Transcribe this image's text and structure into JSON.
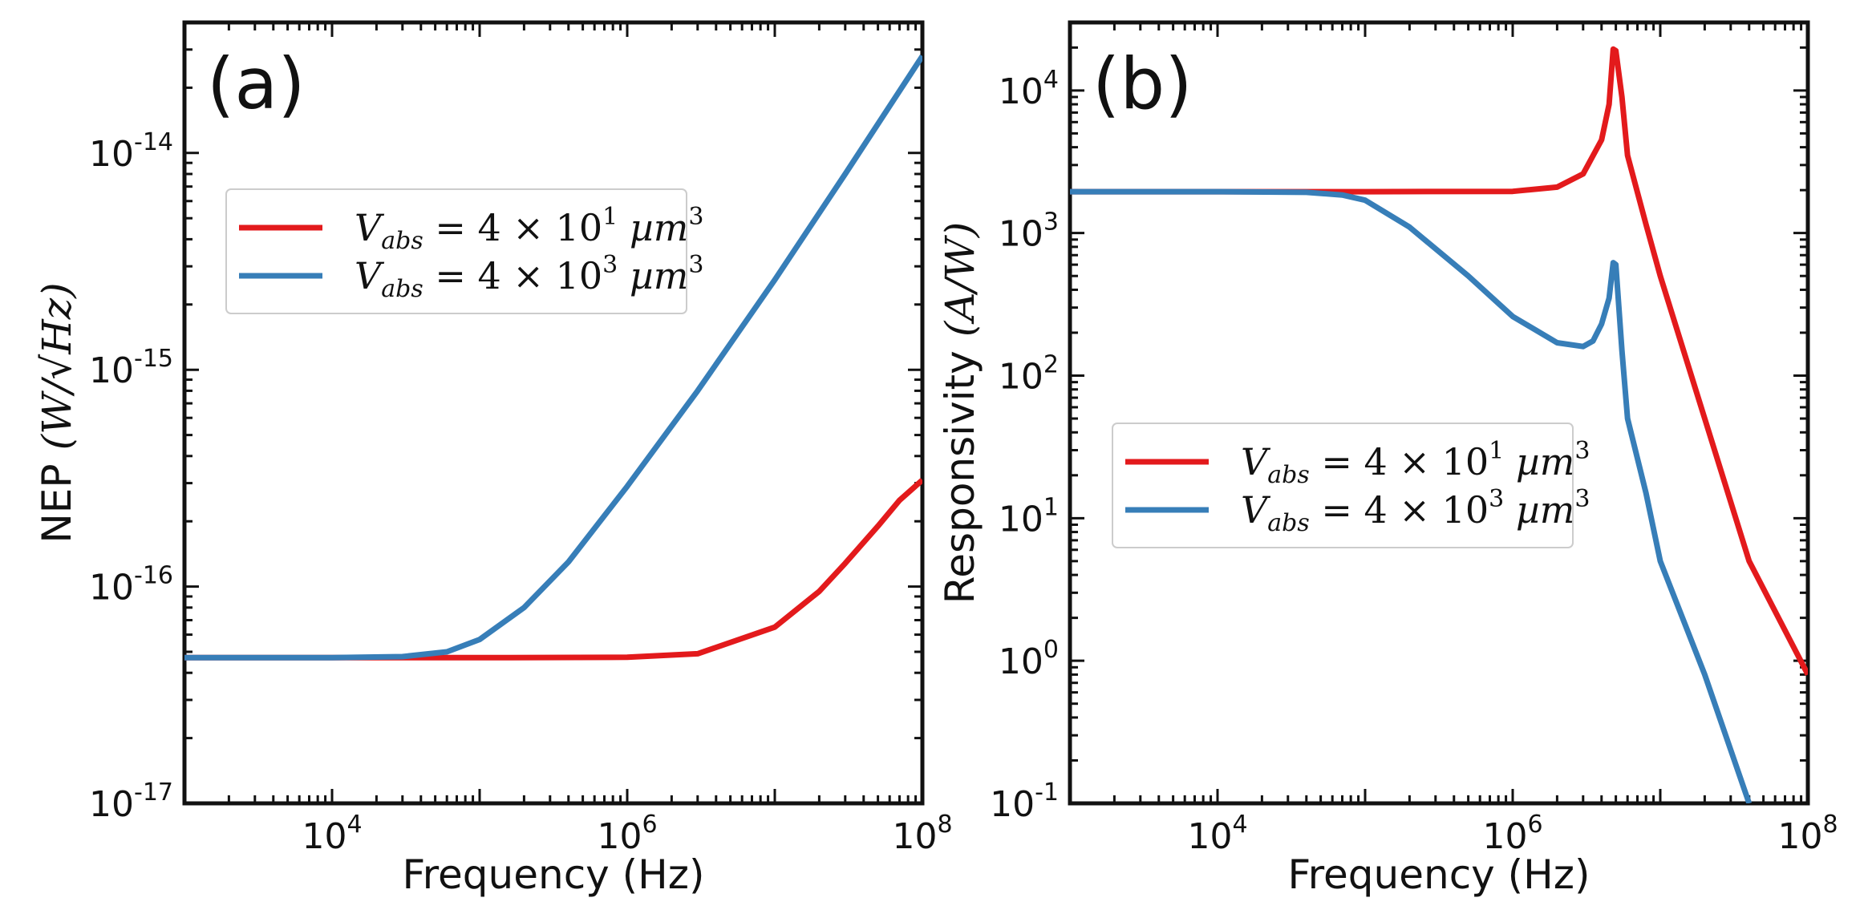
{
  "chart_data": [
    {
      "type": "line",
      "panel_label": "(a)",
      "xlabel": "Frequency (Hz)",
      "ylabel": "NEP",
      "ylabel_unit": "(W/√Hz)",
      "xscale": "log",
      "yscale": "log",
      "xlim": [
        1000,
        100000000
      ],
      "ylim": [
        1e-17,
        4e-14
      ],
      "x_ticks": [
        {
          "value": 10000,
          "base": "10",
          "exp": "4"
        },
        {
          "value": 1000000,
          "base": "10",
          "exp": "6"
        },
        {
          "value": 100000000,
          "base": "10",
          "exp": "8"
        }
      ],
      "y_ticks": [
        {
          "value": 1e-17,
          "base": "10",
          "exp": "-17"
        },
        {
          "value": 1e-16,
          "base": "10",
          "exp": "-16"
        },
        {
          "value": 1e-15,
          "base": "10",
          "exp": "-15"
        },
        {
          "value": 1e-14,
          "base": "10",
          "exp": "-14"
        }
      ],
      "legend_position": "upper-left",
      "series": [
        {
          "name": "V_abs = 4 × 10^1 µm^3",
          "legend": {
            "sym": "V",
            "sub": "abs",
            "eq": " = 4 × 10",
            "exp": "1",
            "unit": " µm",
            "unit_exp": "3"
          },
          "color": "#e31a1c",
          "x": [
            1000,
            10000,
            100000,
            1000000,
            3000000,
            10000000,
            20000000,
            30000000,
            50000000,
            70000000,
            100000000
          ],
          "y": [
            4.7e-17,
            4.7e-17,
            4.7e-17,
            4.72e-17,
            4.9e-17,
            6.5e-17,
            9.5e-17,
            1.28e-16,
            1.9e-16,
            2.5e-16,
            3.1e-16
          ]
        },
        {
          "name": "V_abs = 4 × 10^3 µm^3",
          "legend": {
            "sym": "V",
            "sub": "abs",
            "eq": " = 4 × 10",
            "exp": "3",
            "unit": " µm",
            "unit_exp": "3"
          },
          "color": "#377eb8",
          "x": [
            1000,
            10000,
            30000,
            60000,
            100000,
            200000,
            400000,
            1000000,
            3000000,
            10000000,
            30000000,
            100000000
          ],
          "y": [
            4.7e-17,
            4.7e-17,
            4.75e-17,
            5e-17,
            5.7e-17,
            8e-17,
            1.3e-16,
            2.9e-16,
            8e-16,
            2.6e-15,
            8e-15,
            2.8e-14
          ]
        }
      ]
    },
    {
      "type": "line",
      "panel_label": "(b)",
      "xlabel": "Frequency (Hz)",
      "ylabel": "Responsivity",
      "ylabel_unit": "(A/W)",
      "xscale": "log",
      "yscale": "log",
      "xlim": [
        1000,
        100000000
      ],
      "ylim": [
        0.1,
        30000
      ],
      "x_ticks": [
        {
          "value": 10000,
          "base": "10",
          "exp": "4"
        },
        {
          "value": 1000000,
          "base": "10",
          "exp": "6"
        },
        {
          "value": 100000000,
          "base": "10",
          "exp": "8"
        }
      ],
      "y_ticks": [
        {
          "value": 0.1,
          "base": "10",
          "exp": "-1"
        },
        {
          "value": 1,
          "base": "10",
          "exp": "0"
        },
        {
          "value": 10,
          "base": "10",
          "exp": "1"
        },
        {
          "value": 100,
          "base": "10",
          "exp": "2"
        },
        {
          "value": 1000,
          "base": "10",
          "exp": "3"
        },
        {
          "value": 10000,
          "base": "10",
          "exp": "4"
        }
      ],
      "legend_position": "center-left",
      "series": [
        {
          "name": "V_abs = 4 × 10^1 µm^3",
          "legend": {
            "sym": "V",
            "sub": "abs",
            "eq": " = 4 × 10",
            "exp": "1",
            "unit": " µm",
            "unit_exp": "3"
          },
          "color": "#e31a1c",
          "x": [
            1000,
            10000,
            100000,
            1000000,
            2000000,
            3000000,
            4000000,
            4500000,
            4800000,
            5000000,
            5500000,
            6000000,
            8000000,
            10000000,
            20000000,
            40000000,
            100000000
          ],
          "y": [
            1950,
            1950,
            1950,
            1960,
            2100,
            2600,
            4500,
            8000,
            19500,
            19000,
            9000,
            3500,
            1150,
            500,
            50,
            5,
            0.8
          ]
        },
        {
          "name": "V_abs = 4 × 10^3 µm^3",
          "legend": {
            "sym": "V",
            "sub": "abs",
            "eq": " = 4 × 10",
            "exp": "3",
            "unit": " µm",
            "unit_exp": "3"
          },
          "color": "#377eb8",
          "x": [
            1000,
            10000,
            40000,
            70000,
            100000,
            200000,
            500000,
            1000000,
            2000000,
            3000000,
            3500000,
            4000000,
            4500000,
            4800000,
            5000000,
            5500000,
            6000000,
            8000000,
            10000000,
            20000000,
            40000000
          ],
          "y": [
            1950,
            1950,
            1930,
            1850,
            1700,
            1100,
            500,
            260,
            170,
            160,
            175,
            230,
            350,
            620,
            600,
            150,
            50,
            15,
            5,
            0.8,
            0.1
          ]
        }
      ]
    }
  ]
}
